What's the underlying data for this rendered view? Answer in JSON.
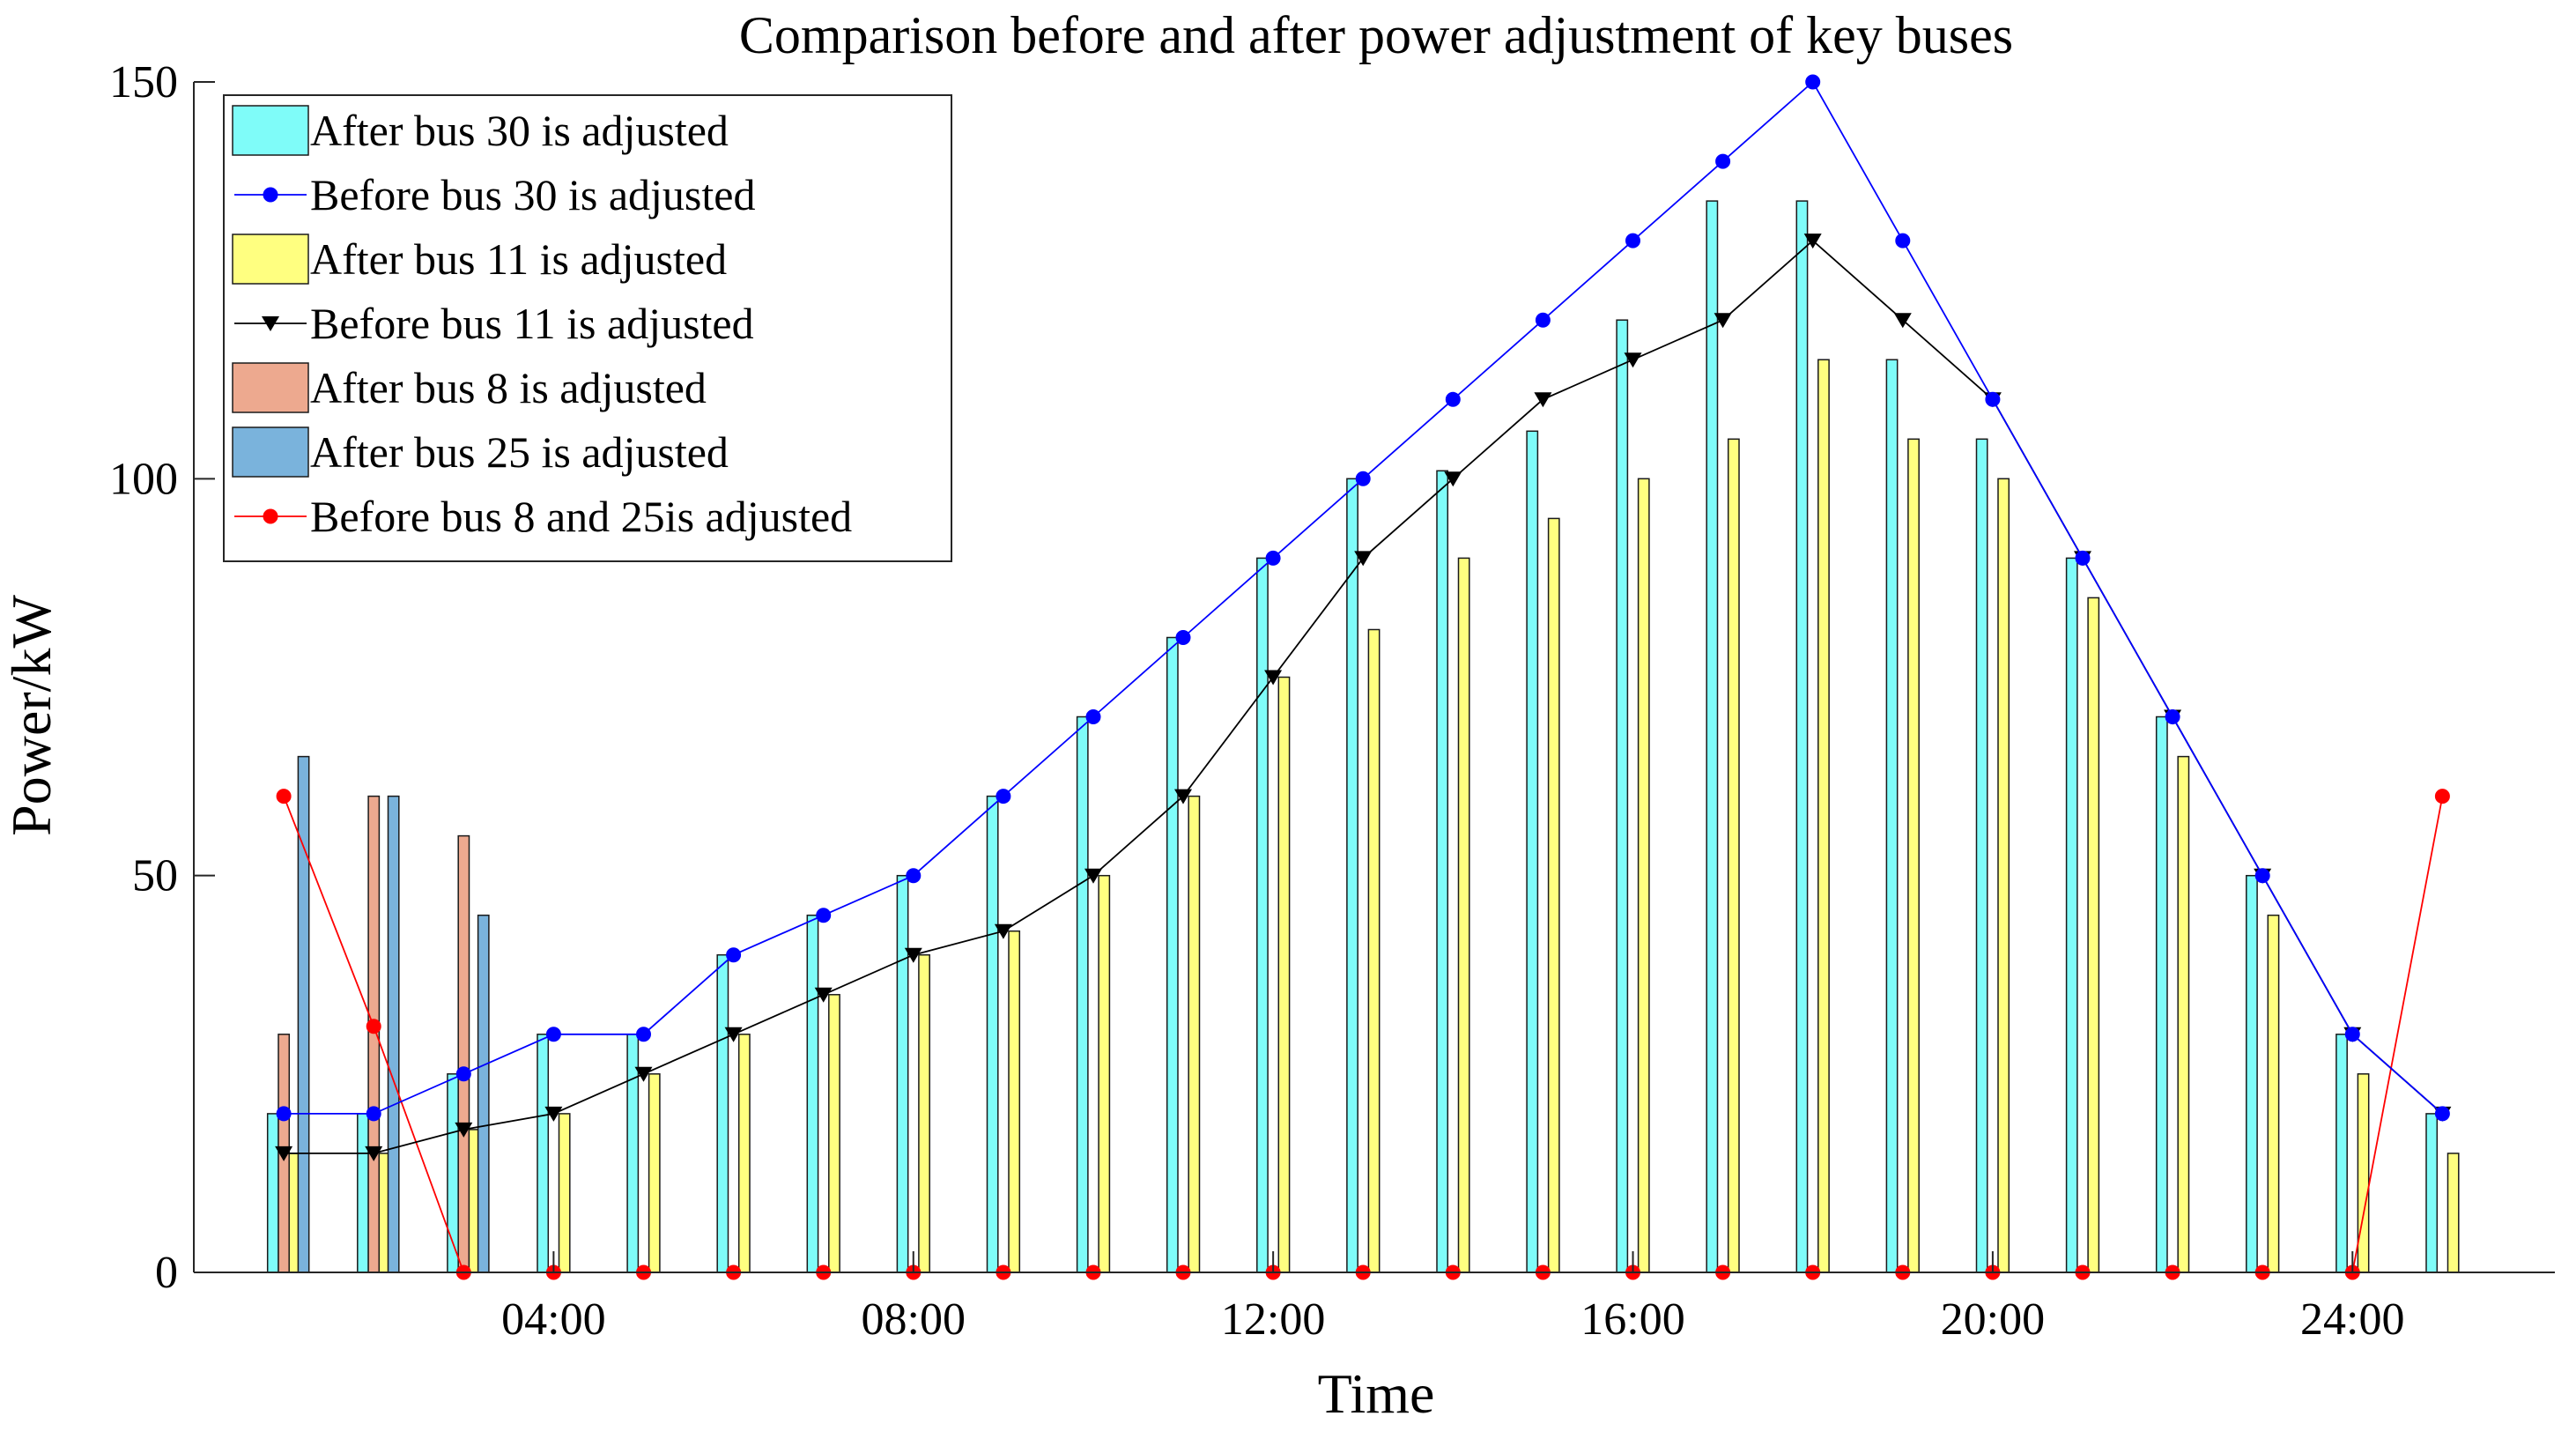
{
  "chart_data": {
    "type": "bar",
    "title": "Comparison before and after power adjustment of key buses",
    "xlabel": "Time",
    "ylabel": "Power/kW",
    "ylim": [
      0,
      150
    ],
    "yticks": [
      0,
      50,
      100,
      150
    ],
    "xlim": [
      0,
      26.25
    ],
    "xticks": [
      {
        "x": 4,
        "label": "04:00"
      },
      {
        "x": 8,
        "label": "08:00"
      },
      {
        "x": 12,
        "label": "12:00"
      },
      {
        "x": 16,
        "label": "16:00"
      },
      {
        "x": 20,
        "label": "20:00"
      },
      {
        "x": 24,
        "label": "24:00"
      }
    ],
    "x": [
      1,
      2,
      3,
      4,
      5,
      6,
      7,
      8,
      9,
      10,
      11,
      12,
      13,
      14,
      15,
      16,
      17,
      18,
      19,
      20,
      21,
      22,
      23,
      24,
      25
    ],
    "legend_position": "top-left",
    "series": [
      {
        "key": "bar30",
        "name": "After bus 30 is adjusted",
        "kind": "bar",
        "color": "#7ffcf9",
        "values": [
          20,
          20,
          25,
          30,
          30,
          40,
          45,
          50,
          60,
          70,
          80,
          90,
          100,
          101,
          106,
          120,
          135,
          135,
          115,
          105,
          90,
          70,
          50,
          30,
          20
        ]
      },
      {
        "key": "line30",
        "name": "Before bus 30 is adjusted",
        "kind": "line",
        "marker": "circle",
        "color": "#0000ff",
        "values": [
          20,
          20,
          25,
          30,
          30,
          40,
          45,
          50,
          60,
          70,
          80,
          90,
          100,
          110,
          120,
          130,
          140,
          150,
          130,
          110,
          90,
          70,
          50,
          30,
          20
        ]
      },
      {
        "key": "bar11",
        "name": "After bus 11 is adjusted",
        "kind": "bar",
        "color": "#ffff80",
        "values": [
          15,
          15,
          18,
          20,
          25,
          30,
          35,
          40,
          43,
          50,
          60,
          75,
          81,
          90,
          95,
          100,
          105,
          115,
          105,
          100,
          85,
          65,
          45,
          25,
          15
        ]
      },
      {
        "key": "line11",
        "name": "Before bus 11 is adjusted",
        "kind": "line",
        "marker": "triangle-down",
        "color": "#000000",
        "values": [
          15,
          15,
          18,
          20,
          25,
          30,
          35,
          40,
          43,
          50,
          60,
          75,
          90,
          100,
          110,
          115,
          120,
          130,
          120,
          110,
          90,
          70,
          50,
          30,
          20
        ]
      },
      {
        "key": "bar8",
        "name": "After bus 8 is adjusted",
        "kind": "bar",
        "color": "#eda98f",
        "values": [
          30,
          60,
          55,
          0,
          0,
          0,
          0,
          0,
          0,
          0,
          0,
          0,
          0,
          0,
          0,
          0,
          0,
          0,
          0,
          0,
          0,
          0,
          0,
          0,
          0
        ]
      },
      {
        "key": "bar25",
        "name": "After  bus 25 is adjusted",
        "kind": "bar",
        "color": "#7ab3dc",
        "values": [
          65,
          60,
          45,
          0,
          0,
          0,
          0,
          0,
          0,
          0,
          0,
          0,
          0,
          0,
          0,
          0,
          0,
          0,
          0,
          0,
          0,
          0,
          0,
          0,
          0
        ]
      },
      {
        "key": "line825",
        "name": "Before bus 8 and 25is adjusted",
        "kind": "line",
        "marker": "circle",
        "color": "#ff0000",
        "values": [
          60,
          31,
          0,
          0,
          0,
          0,
          0,
          0,
          0,
          0,
          0,
          0,
          0,
          0,
          0,
          0,
          0,
          0,
          0,
          0,
          0,
          0,
          0,
          0,
          60
        ]
      }
    ]
  }
}
